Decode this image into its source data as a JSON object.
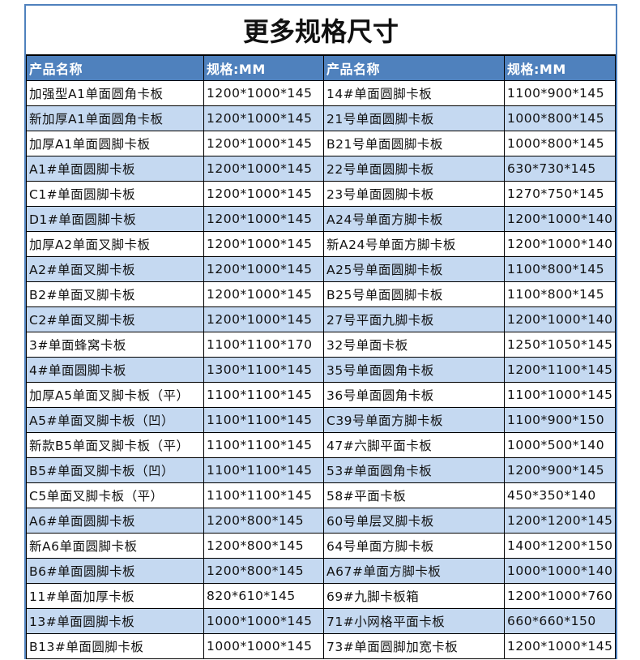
{
  "title": "更多规格尺寸",
  "headers": [
    "产品名称",
    "规格:MM",
    "产品名称",
    "规格:MM"
  ],
  "colors": {
    "header": "#4f81bd",
    "alt_row": "#c5d9f1"
  },
  "rows": [
    [
      "加强型A1单面圆角卡板",
      "1200*1000*145",
      "14#单面圆脚卡板",
      "1100*900*145"
    ],
    [
      "新加厚A1单面圆角卡板",
      "1200*1000*145",
      "21号单面圆脚卡板",
      "1000*800*145"
    ],
    [
      "加厚A1单面圆脚卡板",
      "1200*1000*145",
      "B21号单面圆脚卡板",
      "1000*800*145"
    ],
    [
      "A1#单面圆脚卡板",
      "1200*1000*145",
      "22号单面圆脚卡板",
      "630*730*145"
    ],
    [
      "C1#单面圆脚卡板",
      "1200*1000*145",
      "23号单面圆脚卡板",
      "1270*750*145"
    ],
    [
      "D1#单面圆脚卡板",
      "1200*1000*145",
      "A24号单面方脚卡板",
      "1200*1000*140"
    ],
    [
      "加厚A2单面叉脚卡板",
      "1200*1000*145",
      "新A24号单面方脚卡板",
      "1200*1000*140"
    ],
    [
      "A2#单面叉脚卡板",
      "1200*1000*145",
      "A25号单面圆脚卡板",
      "1100*800*145"
    ],
    [
      "B2#单面叉脚卡板",
      "1200*1000*145",
      "B25号单面圆脚卡板",
      "1100*800*145"
    ],
    [
      "C2#单面叉脚卡板",
      "1200*1000*145",
      "27号平面九脚卡板",
      "1200*1000*140"
    ],
    [
      "3#单面蜂窝卡板",
      "1100*1100*170",
      "32号单面卡板",
      "1250*1050*145"
    ],
    [
      "4#单面圆脚卡板",
      "1300*1100*145",
      "35号单面圆角卡板",
      "1200*1100*145"
    ],
    [
      "加厚A5单面叉脚卡板（平）",
      "1100*1100*145",
      "36号单面圆角卡板",
      "1100*1000*145"
    ],
    [
      "A5#单面叉脚卡板（凹）",
      "1100*1100*145",
      "C39号单面方脚卡板",
      "1100*900*150"
    ],
    [
      "新款B5单面叉脚卡板（平）",
      "1100*1100*145",
      "47#六脚平面卡板",
      "1000*500*140"
    ],
    [
      "B5#单面叉脚卡板（凹）",
      "1100*1100*145",
      "53#单面圆角卡板",
      "1200*900*145"
    ],
    [
      "C5单面叉脚卡板（平）",
      "1100*1100*145",
      "58#平面卡板",
      "450*350*140"
    ],
    [
      "A6#单面圆脚卡板",
      "1200*800*145",
      "60号单层叉脚卡板",
      "1200*1200*145"
    ],
    [
      "新A6单面圆脚卡板",
      "1200*800*145",
      "64号单面方脚卡板",
      "1400*1200*150"
    ],
    [
      "B6#单面圆脚卡板",
      "1200*800*145",
      "A67#单面方脚卡板",
      "1000*1000*140"
    ],
    [
      "11#单面加厚卡板",
      "820*610*145",
      "69#九脚卡板箱",
      "1200*1000*760"
    ],
    [
      "13#单面圆脚卡板",
      "1000*1000*145",
      "71#小网格平面卡板",
      "660*660*150"
    ],
    [
      "B13#单面圆脚卡板",
      "1000*1000*145",
      "73#单面圆脚加宽卡板",
      "1200*1000*145"
    ]
  ]
}
